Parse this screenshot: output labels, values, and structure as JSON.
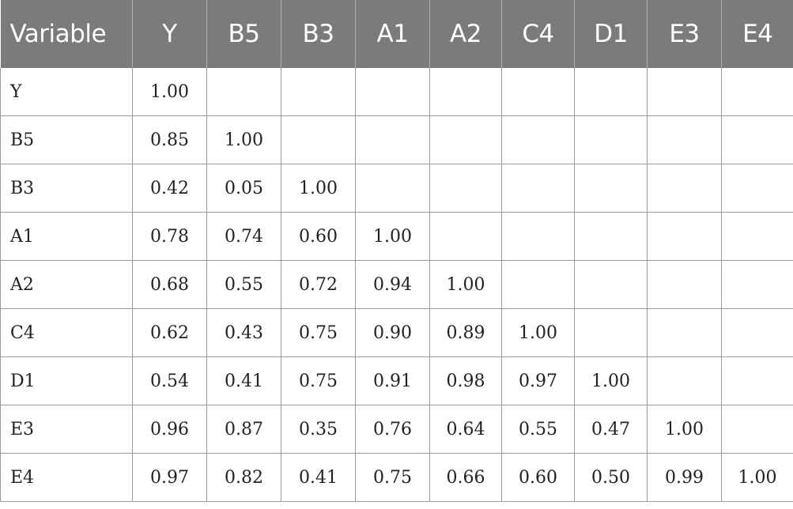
{
  "table": {
    "header_first": "Variable",
    "columns": [
      "Y",
      "B5",
      "B3",
      "A1",
      "A2",
      "C4",
      "D1",
      "E3",
      "E4"
    ],
    "rows": [
      {
        "label": "Y",
        "values": [
          "1.00",
          "",
          "",
          "",
          "",
          "",
          "",
          "",
          ""
        ]
      },
      {
        "label": "B5",
        "values": [
          "0.85",
          "1.00",
          "",
          "",
          "",
          "",
          "",
          "",
          ""
        ]
      },
      {
        "label": "B3",
        "values": [
          "0.42",
          "0.05",
          "1.00",
          "",
          "",
          "",
          "",
          "",
          ""
        ]
      },
      {
        "label": "A1",
        "values": [
          "0.78",
          "0.74",
          "0.60",
          "1.00",
          "",
          "",
          "",
          "",
          ""
        ]
      },
      {
        "label": "A2",
        "values": [
          "0.68",
          "0.55",
          "0.72",
          "0.94",
          "1.00",
          "",
          "",
          "",
          ""
        ]
      },
      {
        "label": "C4",
        "values": [
          "0.62",
          "0.43",
          "0.75",
          "0.90",
          "0.89",
          "1.00",
          "",
          "",
          ""
        ]
      },
      {
        "label": "D1",
        "values": [
          "0.54",
          "0.41",
          "0.75",
          "0.91",
          "0.98",
          "0.97",
          "1.00",
          "",
          ""
        ]
      },
      {
        "label": "E3",
        "values": [
          "0.96",
          "0.87",
          "0.35",
          "0.76",
          "0.64",
          "0.55",
          "0.47",
          "1.00",
          ""
        ]
      },
      {
        "label": "E4",
        "values": [
          "0.97",
          "0.82",
          "0.41",
          "0.75",
          "0.66",
          "0.60",
          "0.50",
          "0.99",
          "1.00"
        ]
      }
    ]
  },
  "colors": {
    "header_background": "#7b7b7b",
    "header_text": "#ffffff",
    "grid_line": "#9a9a9a",
    "cell_text": "#222222"
  }
}
